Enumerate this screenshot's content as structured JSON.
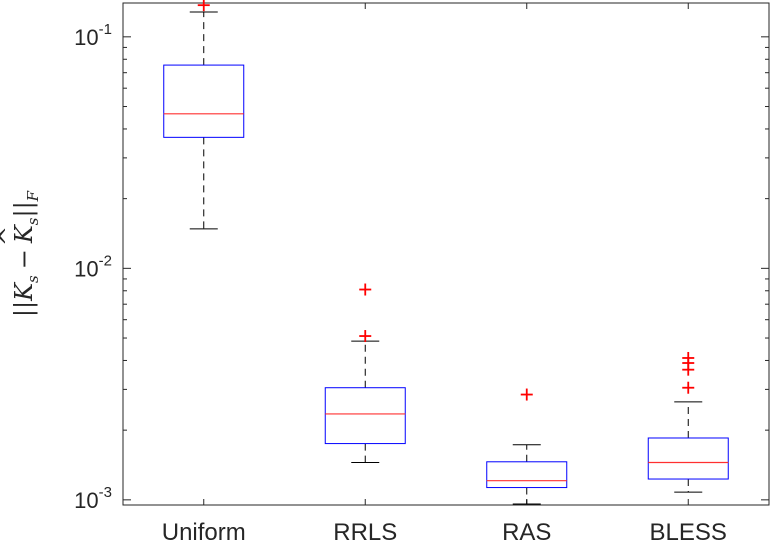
{
  "chart_data": {
    "type": "boxplot",
    "title": "",
    "xlabel": "",
    "ylabel_text": "||K_s − K̂_s||_F",
    "ylabel_parts": {
      "bars_open": "||",
      "var": "K",
      "sub": "s",
      "minus": "−",
      "var_hat": "K",
      "sub2": "s",
      "bars_close": "||",
      "sub3": "F"
    },
    "yscale": "log",
    "ylim": [
      0.00095,
      0.14
    ],
    "yticks": [
      {
        "value": 0.001,
        "base": "10",
        "exp": "-3"
      },
      {
        "value": 0.01,
        "base": "10",
        "exp": "-2"
      },
      {
        "value": 0.1,
        "base": "10",
        "exp": "-1"
      }
    ],
    "categories": [
      "Uniform",
      "RRLS",
      "RAS",
      "BLESS"
    ],
    "boxes": [
      {
        "name": "Uniform",
        "whisker_low": 0.0148,
        "q1": 0.0368,
        "median": 0.0465,
        "q3": 0.0755,
        "whisker_high": 0.128,
        "outliers": [
          0.137
        ]
      },
      {
        "name": "RRLS",
        "whisker_low": 0.00145,
        "q1": 0.00175,
        "median": 0.00235,
        "q3": 0.00305,
        "whisker_high": 0.00485,
        "outliers": [
          0.0051,
          0.0081
        ]
      },
      {
        "name": "RAS",
        "whisker_low": 0.00096,
        "q1": 0.00113,
        "median": 0.00121,
        "q3": 0.00146,
        "whisker_high": 0.00173,
        "outliers": [
          0.00285
        ]
      },
      {
        "name": "BLESS",
        "whisker_low": 0.00108,
        "q1": 0.00123,
        "median": 0.00145,
        "q3": 0.00185,
        "whisker_high": 0.00265,
        "outliers": [
          0.00305,
          0.00365,
          0.0039,
          0.0041
        ]
      }
    ],
    "grid": false,
    "legend": "none",
    "colors": {
      "box": "#0000ff",
      "median": "#ff3030",
      "whisker": "#000000",
      "outlier": "#ff0000",
      "axis": "#262626"
    }
  }
}
